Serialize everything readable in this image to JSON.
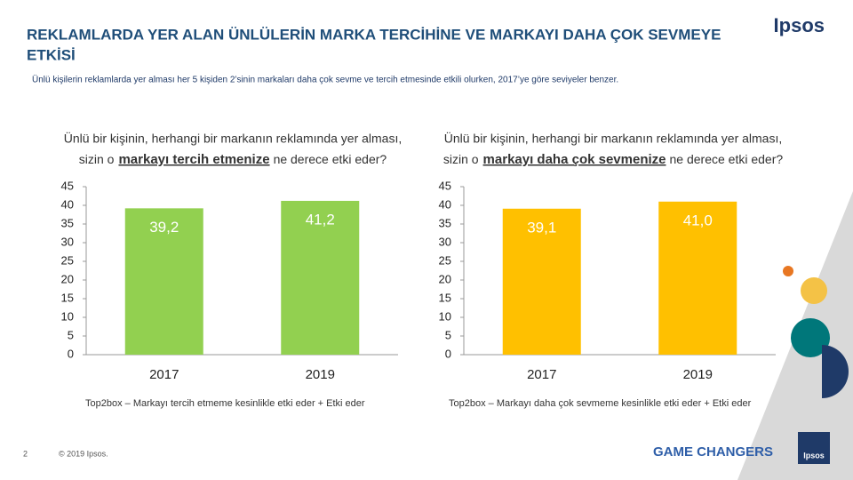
{
  "header": {
    "title_lines": [
      "REKLAMLARDA YER ALAN ÜNLÜLERİN MARKA TERCİHİNE VE MARKAYI DAHA ÇOK SEVMEYE",
      "ETKİSİ"
    ],
    "subtitle": "Ünlü kişilerin reklamlarda yer alması her 5 kişiden 2’sinin markaları daha çok sevme ve tercih etmesinde etkili olurken, 2017’ye göre seviyeler benzer.",
    "logo": "Ipsos"
  },
  "chart_data": [
    {
      "type": "bar",
      "title": [
        "Ünlü bir kişinin, herhangi bir markanın reklamında yer alması,",
        "sizin o",
        "markayı tercih etmenize",
        "ne derece etki eder?"
      ],
      "categories": [
        "2017",
        "2019"
      ],
      "values": [
        39.2,
        41.2
      ],
      "value_labels": [
        "39,2",
        "41,2"
      ],
      "color": "#92d050",
      "ylim": [
        0,
        45
      ],
      "yticks": [
        0,
        5,
        10,
        15,
        20,
        25,
        30,
        35,
        40,
        45
      ],
      "note": "Top2box – Markayı tercih etmeme kesinlikle etki eder + Etki eder"
    },
    {
      "type": "bar",
      "title": [
        "Ünlü bir kişinin, herhangi bir markanın reklamında yer alması,",
        "sizin o",
        "markayı daha çok sevmenize",
        "ne derece etki eder?"
      ],
      "categories": [
        "2017",
        "2019"
      ],
      "values": [
        39.1,
        41.0
      ],
      "value_labels": [
        "39,1",
        "41,0"
      ],
      "color": "#ffc000",
      "ylim": [
        0,
        45
      ],
      "yticks": [
        0,
        5,
        10,
        15,
        20,
        25,
        30,
        35,
        40,
        45
      ],
      "note": "Top2box – Markayı daha çok sevmeme kesinlikle etki eder + Etki eder"
    }
  ],
  "footer": {
    "page": "2",
    "copyright": "© 2019 Ipsos.",
    "tagline": "GAME CHANGERS",
    "logo": "Ipsos"
  }
}
